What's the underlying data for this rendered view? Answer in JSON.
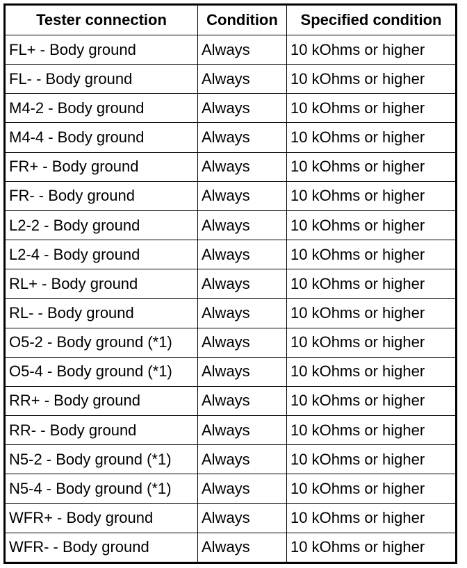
{
  "table": {
    "headers": [
      "Tester connection",
      "Condition",
      "Specified condition"
    ],
    "rows": [
      [
        "FL+ - Body ground",
        "Always",
        "10 kOhms or higher"
      ],
      [
        "FL- - Body ground",
        "Always",
        "10 kOhms or higher"
      ],
      [
        "M4-2 - Body ground",
        "Always",
        "10 kOhms or higher"
      ],
      [
        "M4-4 - Body ground",
        "Always",
        "10 kOhms or higher"
      ],
      [
        "FR+ - Body ground",
        "Always",
        "10 kOhms or higher"
      ],
      [
        "FR- - Body ground",
        "Always",
        "10 kOhms or higher"
      ],
      [
        "L2-2 - Body ground",
        "Always",
        "10 kOhms or higher"
      ],
      [
        "L2-4 - Body ground",
        "Always",
        "10 kOhms or higher"
      ],
      [
        "RL+ - Body ground",
        "Always",
        "10 kOhms or higher"
      ],
      [
        "RL- - Body ground",
        "Always",
        "10 kOhms or higher"
      ],
      [
        "O5-2 - Body ground (*1)",
        "Always",
        "10 kOhms or higher"
      ],
      [
        "O5-4 - Body ground (*1)",
        "Always",
        "10 kOhms or higher"
      ],
      [
        "RR+ - Body ground",
        "Always",
        "10 kOhms or higher"
      ],
      [
        "RR- - Body ground",
        "Always",
        "10 kOhms or higher"
      ],
      [
        "N5-2 - Body ground (*1)",
        "Always",
        "10 kOhms or higher"
      ],
      [
        "N5-4 - Body ground (*1)",
        "Always",
        "10 kOhms or higher"
      ],
      [
        "WFR+ - Body ground",
        "Always",
        "10 kOhms or higher"
      ],
      [
        "WFR- - Body ground",
        "Always",
        "10 kOhms or higher"
      ]
    ]
  }
}
